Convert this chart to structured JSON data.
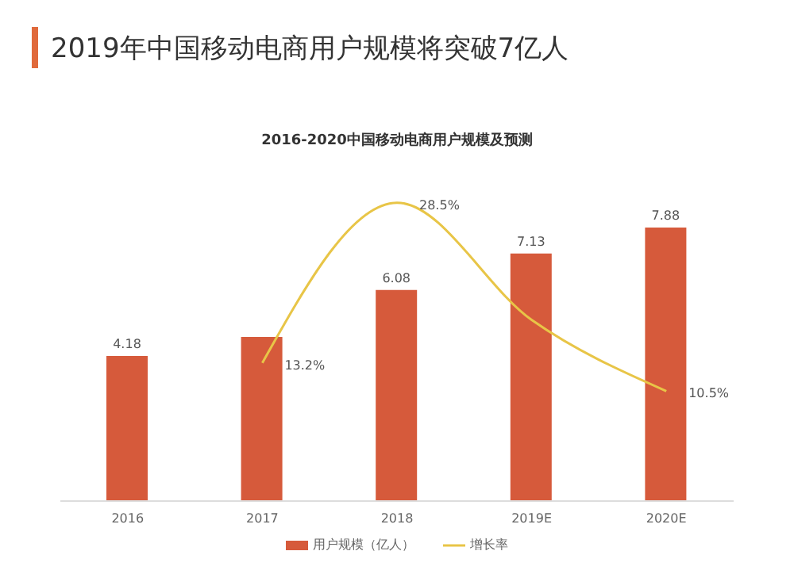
{
  "chart_data": {
    "type": "bar",
    "title": "2019年中国移动电商用户规模将突破7亿人",
    "subtitle": "2016-2020中国移动电商用户规模及预测",
    "categories": [
      "2016",
      "2017",
      "2018",
      "2019E",
      "2020E"
    ],
    "series": [
      {
        "name": "用户规模（亿人）",
        "color": "#d65a3b",
        "values": [
          4.18,
          4.73,
          6.08,
          7.13,
          7.88
        ],
        "value_labels": [
          "4.18",
          null,
          "6.08",
          "7.13",
          "7.88"
        ]
      },
      {
        "name": "增长率",
        "type": "line",
        "axis": "y2",
        "color": "#e8c547",
        "values": [
          null,
          13.2,
          28.5,
          17.3,
          10.5
        ],
        "value_labels": [
          null,
          "13.2%",
          "28.5%",
          null,
          "10.5%"
        ]
      }
    ],
    "tick_labels": "x",
    "legend": "bottom",
    "marker": "none"
  }
}
